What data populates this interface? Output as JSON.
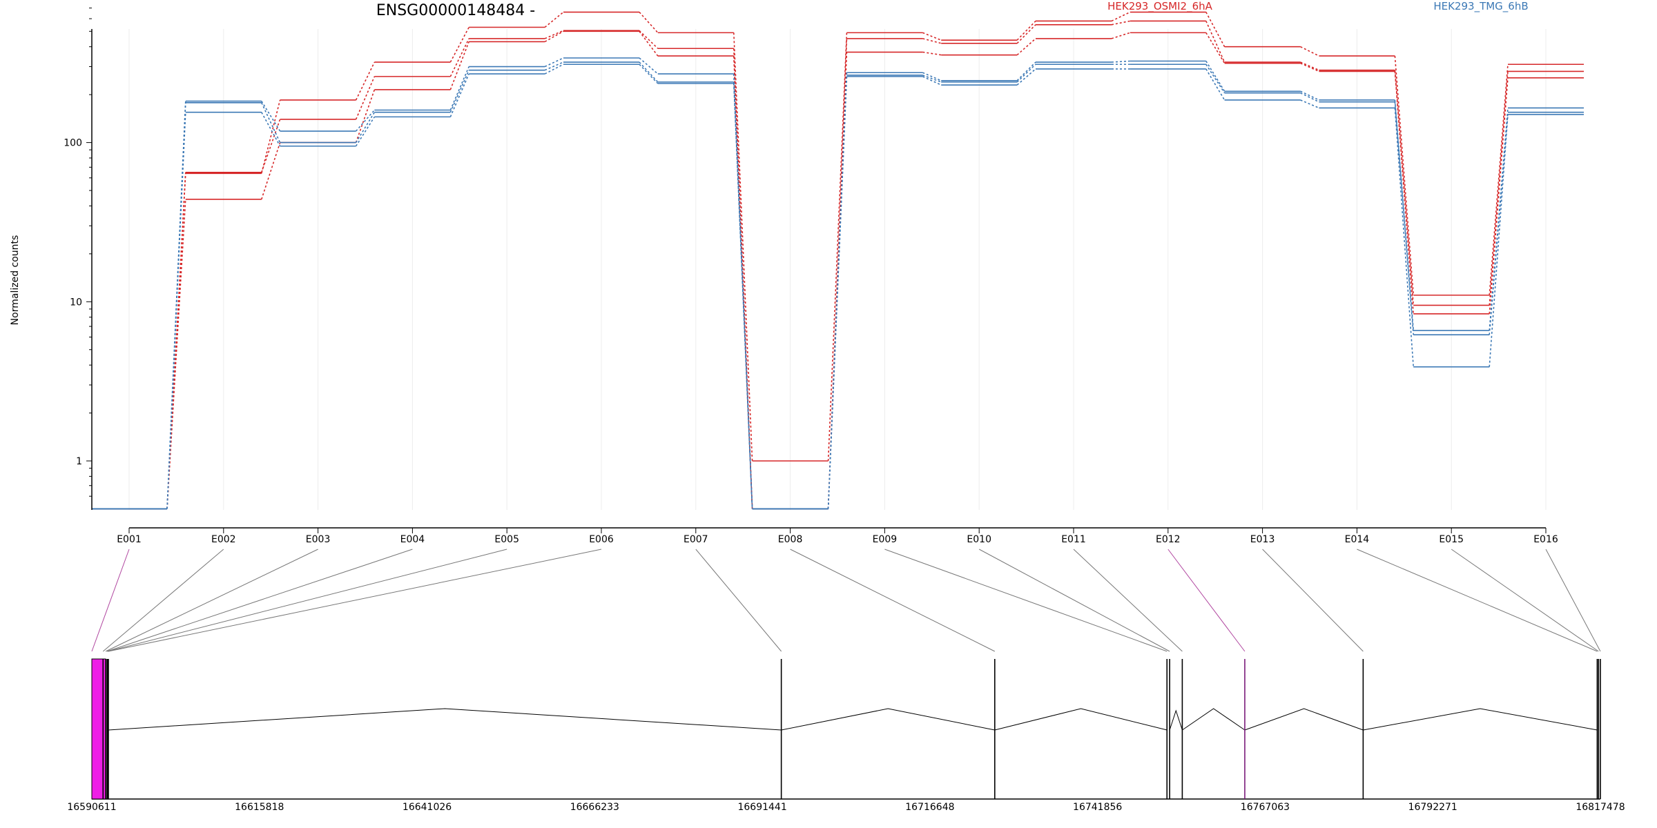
{
  "chart_data": {
    "type": "line",
    "title": "ENSG00000148484 -",
    "ylabel": "Normalized counts",
    "xlabel": "",
    "y_scale": "log",
    "ylim": [
      0.5,
      900
    ],
    "y_ticks": [
      {
        "value": 1,
        "label": "1"
      },
      {
        "value": 10,
        "label": "10"
      },
      {
        "value": 100,
        "label": "100"
      }
    ],
    "categories": [
      "E001",
      "E002",
      "E003",
      "E004",
      "E005",
      "E006",
      "E007",
      "E008",
      "E009",
      "E010",
      "E011",
      "E012",
      "E013",
      "E014",
      "E015",
      "E016"
    ],
    "legend_placement": "top-right",
    "grid": "vertical-light",
    "series": [
      {
        "name": "HEK293_OSMI2_6hA",
        "group": "OSMI2",
        "color": "#d62728",
        "values": [
          0.5,
          64,
          185,
          320,
          530,
          660,
          490,
          1.0,
          490,
          440,
          580,
          660,
          400,
          350,
          11,
          310
        ]
      },
      {
        "name": "",
        "group": "OSMI2",
        "color": "#d62728",
        "values": [
          0.5,
          65,
          140,
          260,
          450,
          505,
          390,
          0.5,
          450,
          420,
          550,
          580,
          320,
          285,
          9.5,
          280
        ]
      },
      {
        "name": "",
        "group": "OSMI2",
        "color": "#d62728",
        "values": [
          0.5,
          44,
          100,
          215,
          430,
          500,
          350,
          0.5,
          370,
          355,
          450,
          490,
          315,
          280,
          8.4,
          255
        ]
      },
      {
        "name": "HEK293_TMG_6hB",
        "group": "TMG",
        "color": "#3b78b5",
        "values": [
          0.5,
          182,
          118,
          160,
          300,
          340,
          270,
          0.5,
          275,
          245,
          320,
          325,
          210,
          185,
          6.6,
          165
        ]
      },
      {
        "name": "",
        "group": "TMG",
        "color": "#3b78b5",
        "values": [
          0.5,
          178,
          100,
          155,
          285,
          320,
          240,
          0.5,
          265,
          240,
          310,
          310,
          205,
          180,
          6.2,
          155
        ]
      },
      {
        "name": "",
        "group": "TMG",
        "color": "#3b78b5",
        "values": [
          0.5,
          155,
          95,
          145,
          270,
          310,
          235,
          0.5,
          260,
          230,
          290,
          290,
          185,
          165,
          3.9,
          150
        ]
      }
    ],
    "gene_model": {
      "start_label": "16590611",
      "end_label": "16817478",
      "start": 16590611,
      "end": 16817478,
      "genomic_ticks": [
        "16590611",
        "16615818",
        "16641026",
        "16666233",
        "16691441",
        "16716648",
        "16741856",
        "16767063",
        "16792271",
        "16817478"
      ],
      "exon_positions": [
        16590611,
        16592300,
        16592700,
        16592900,
        16593000,
        16593100,
        16694300,
        16726400,
        16752300,
        16752700,
        16754600,
        16764000,
        16781800,
        16817000,
        16817200,
        16817478
      ],
      "highlight_exons": [
        "E001",
        "E012"
      ],
      "highlight_color": "#ee1ee6"
    }
  }
}
